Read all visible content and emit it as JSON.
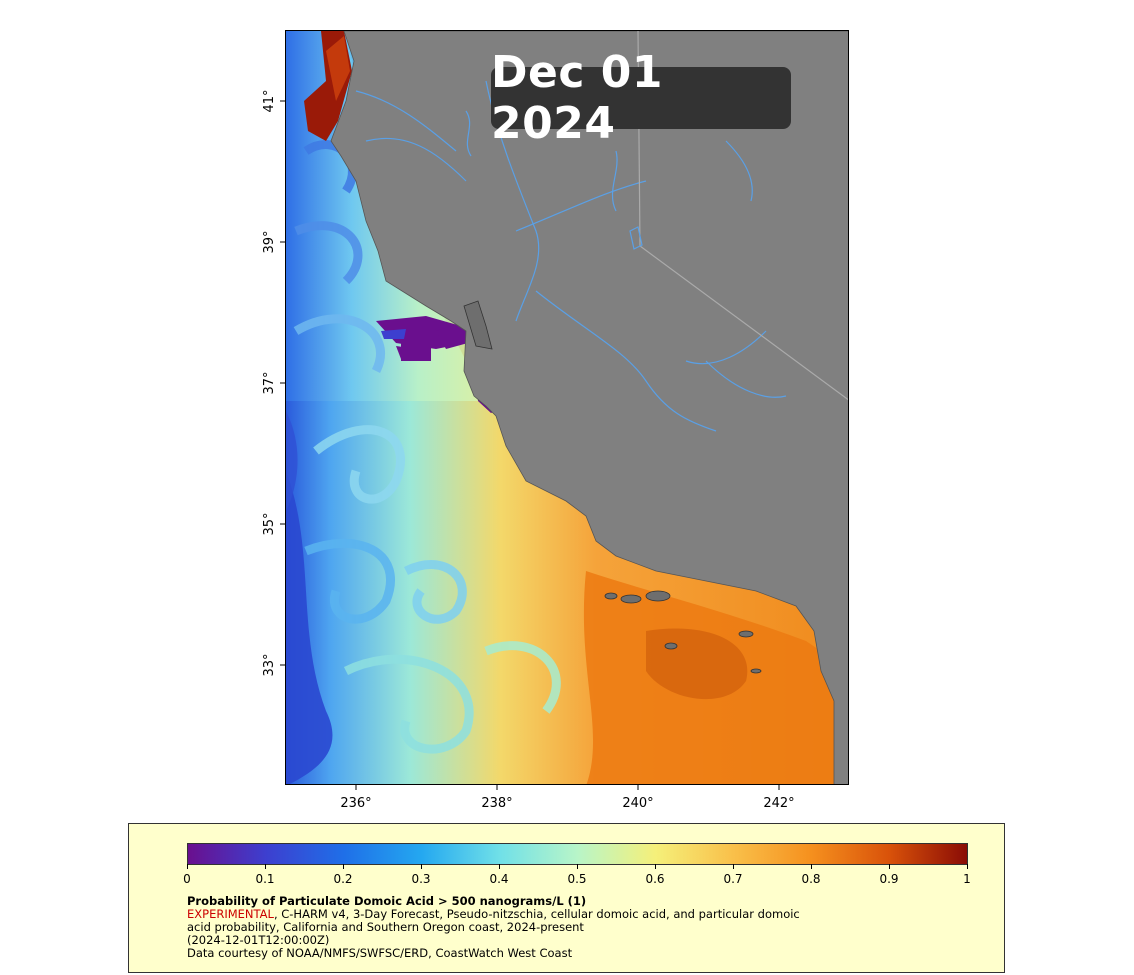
{
  "map": {
    "date_label": "Dec 01 2024",
    "land_color": "#808080",
    "river_color": "#5aa0e6",
    "y_ticks": [
      "41°",
      "39°",
      "37°",
      "35°",
      "33°"
    ],
    "x_ticks": [
      "236°",
      "238°",
      "240°",
      "242°"
    ]
  },
  "legend": {
    "scale_labels": [
      "0",
      "0.1",
      "0.2",
      "0.3",
      "0.4",
      "0.5",
      "0.6",
      "0.7",
      "0.8",
      "0.9",
      "1"
    ],
    "title": "Probability of Particulate Domoic Acid > 500 nanograms/L (1)",
    "experimental": "EXPERIMENTAL",
    "desc_line1": ", C-HARM v4, 3-Day Forecast, Pseudo-nitzschia, cellular domoic acid, and particular domoic",
    "desc_line2": "acid probability, California and Southern Oregon coast, 2024-present",
    "timestamp": "(2024-12-01T12:00:00Z)",
    "credit": "Data courtesy of NOAA/NMFS/SWFSC/ERD, CoastWatch West Coast",
    "colormap": [
      "#6a0f8e",
      "#3d3fcf",
      "#1f6fe8",
      "#24a8f0",
      "#70e0e8",
      "#b8f5c8",
      "#f5f07a",
      "#f9c04a",
      "#f5901e",
      "#d9520a",
      "#8a0c05"
    ]
  }
}
